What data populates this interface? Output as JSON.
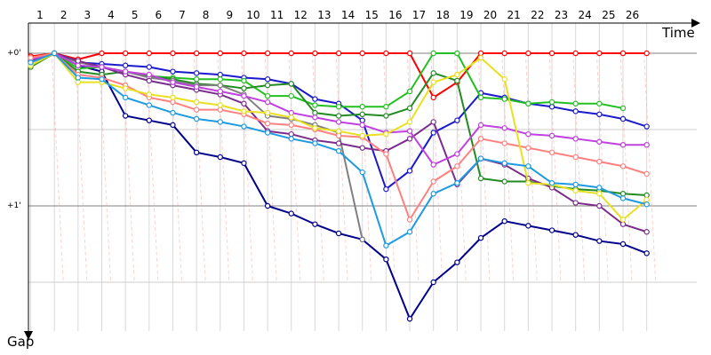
{
  "chart_data": {
    "type": "line",
    "xlabel": "Time",
    "ylabel": "Gap",
    "x_ticks": [
      "1",
      "2",
      "3",
      "4",
      "5",
      "6",
      "7",
      "8",
      "9",
      "10",
      "11",
      "12",
      "13",
      "14",
      "15",
      "16",
      "17",
      "18",
      "19",
      "20",
      "21",
      "22",
      "23",
      "24",
      "25",
      "26"
    ],
    "y_ticks": [
      "+0'",
      "+1'"
    ],
    "y_axis_direction": "down",
    "y_unit": "minutes",
    "ylim": [
      -0.15,
      1.75
    ],
    "grid": true,
    "legend": "none",
    "series": [
      {
        "color": "#ff0000",
        "values": [
          0.02,
          0,
          0.04,
          0,
          0,
          0,
          0,
          0,
          0,
          0,
          0,
          0,
          0,
          0,
          0,
          0,
          0,
          0.29,
          0.19,
          0,
          0,
          0,
          0,
          0,
          0,
          0,
          0
        ]
      },
      {
        "color": "#1a1acc",
        "values": [
          0.05,
          0,
          0.06,
          0.07,
          0.08,
          0.09,
          0.12,
          0.13,
          0.14,
          0.16,
          0.17,
          0.2,
          0.3,
          0.33,
          0.44,
          0.89,
          0.77,
          0.52,
          0.44,
          0.26,
          0.29,
          0.33,
          0.35,
          0.38,
          0.4,
          0.43,
          0.48
        ]
      },
      {
        "color": "#00008b",
        "values": [
          0.08,
          0,
          0.08,
          0.12,
          0.41,
          0.44,
          0.47,
          0.65,
          0.68,
          0.72,
          1.0,
          1.05,
          1.12,
          1.18,
          1.22,
          1.35,
          1.74,
          1.5,
          1.37,
          1.21,
          1.1,
          1.13,
          1.16,
          1.19,
          1.23,
          1.25,
          1.31
        ]
      },
      {
        "color": "#22c022",
        "values": [
          0.03,
          0,
          0.1,
          0.09,
          0.12,
          0.15,
          0.16,
          0.17,
          0.17,
          0.18,
          0.28,
          0.28,
          0.34,
          0.35,
          0.35,
          0.35,
          0.25,
          0,
          0,
          0.29,
          0.3,
          0.33,
          0.32,
          0.33,
          0.33,
          0.36
        ]
      },
      {
        "color": "#228b22",
        "values": [
          0.09,
          0,
          0.12,
          0.14,
          0.12,
          0.15,
          0.17,
          0.2,
          0.21,
          0.23,
          0.21,
          0.2,
          0.39,
          0.41,
          0.4,
          0.41,
          0.36,
          0.13,
          0.18,
          0.82,
          0.84,
          0.84,
          0.87,
          0.89,
          0.9,
          0.92,
          0.93
        ]
      },
      {
        "color": "#808080",
        "values": [
          0.06,
          0,
          0.06,
          0.09,
          0.12,
          0.16,
          0.18,
          0.21,
          0.21,
          0.27,
          0.41,
          0.43,
          0.47,
          0.52,
          1.22
        ]
      },
      {
        "color": "#7b2d8b",
        "values": [
          0.05,
          0,
          0.05,
          0.09,
          0.14,
          0.18,
          0.21,
          0.24,
          0.27,
          0.33,
          0.51,
          0.53,
          0.57,
          0.59,
          0.62,
          0.64,
          0.56,
          0.45,
          0.86,
          0.69,
          0.73,
          0.82,
          0.88,
          0.98,
          1.0,
          1.12,
          1.17
        ]
      },
      {
        "color": "#c040e0",
        "values": [
          0.04,
          0,
          0.08,
          0.09,
          0.12,
          0.14,
          0.19,
          0.22,
          0.25,
          0.28,
          0.32,
          0.39,
          0.42,
          0.45,
          0.47,
          0.52,
          0.51,
          0.73,
          0.66,
          0.47,
          0.49,
          0.53,
          0.54,
          0.56,
          0.58,
          0.6,
          0.6
        ]
      },
      {
        "color": "#ff8080",
        "values": [
          0.03,
          0,
          0.14,
          0.16,
          0.21,
          0.29,
          0.32,
          0.37,
          0.37,
          0.4,
          0.46,
          0.47,
          0.5,
          0.54,
          0.55,
          0.66,
          1.09,
          0.84,
          0.74,
          0.56,
          0.59,
          0.62,
          0.65,
          0.68,
          0.71,
          0.74,
          0.79
        ]
      },
      {
        "color": "#e8e020",
        "values": [
          0.08,
          0,
          0.19,
          0.19,
          0.23,
          0.27,
          0.29,
          0.32,
          0.34,
          0.38,
          0.39,
          0.42,
          0.49,
          0.51,
          0.54,
          0.53,
          0.45,
          0.19,
          0.14,
          0.03,
          0.17,
          0.85,
          0.86,
          0.9,
          0.92,
          1.09,
          0.96
        ]
      },
      {
        "color": "#1e9ae0",
        "values": [
          0.06,
          0,
          0.16,
          0.17,
          0.29,
          0.34,
          0.39,
          0.43,
          0.45,
          0.48,
          0.52,
          0.56,
          0.59,
          0.64,
          0.78,
          1.26,
          1.17,
          0.92,
          0.85,
          0.69,
          0.72,
          0.74,
          0.85,
          0.86,
          0.88,
          0.95,
          0.99
        ]
      }
    ]
  }
}
